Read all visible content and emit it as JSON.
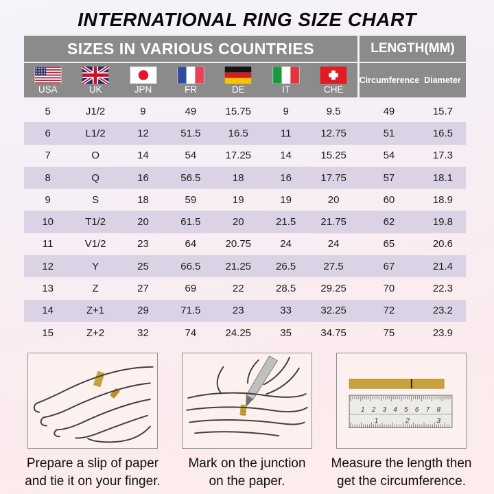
{
  "title": "INTERNATIONAL RING SIZE CHART",
  "table": {
    "header_left": "SIZES IN VARIOUS COUNTRIES",
    "header_right": "LENGTH(MM)",
    "countries": [
      {
        "code": "USA",
        "icon": "usa-flag-icon"
      },
      {
        "code": "UK",
        "icon": "uk-flag-icon"
      },
      {
        "code": "JPN",
        "icon": "jpn-flag-icon"
      },
      {
        "code": "FR",
        "icon": "fr-flag-icon"
      },
      {
        "code": "DE",
        "icon": "de-flag-icon"
      },
      {
        "code": "IT",
        "icon": "it-flag-icon"
      },
      {
        "code": "CHE",
        "icon": "che-flag-icon"
      }
    ],
    "length_columns": [
      "Circumference",
      "Diameter"
    ]
  },
  "chart_data": {
    "type": "table",
    "title": "INTERNATIONAL RING SIZE CHART",
    "columns": [
      "USA",
      "UK",
      "JPN",
      "FR",
      "DE",
      "IT",
      "CHE",
      "Circumference (mm)",
      "Diameter (mm)"
    ],
    "rows": [
      [
        "5",
        "J1/2",
        "9",
        "49",
        "15.75",
        "9",
        "9.5",
        "49",
        "15.7"
      ],
      [
        "6",
        "L1/2",
        "12",
        "51.5",
        "16.5",
        "11",
        "12.75",
        "51",
        "16.5"
      ],
      [
        "7",
        "O",
        "14",
        "54",
        "17.25",
        "14",
        "15.25",
        "54",
        "17.3"
      ],
      [
        "8",
        "Q",
        "16",
        "56.5",
        "18",
        "16",
        "17.75",
        "57",
        "18.1"
      ],
      [
        "9",
        "S",
        "18",
        "59",
        "19",
        "19",
        "20",
        "60",
        "18.9"
      ],
      [
        "10",
        "T1/2",
        "20",
        "61.5",
        "20",
        "21.5",
        "21.75",
        "62",
        "19.8"
      ],
      [
        "11",
        "V1/2",
        "23",
        "64",
        "20.75",
        "24",
        "24",
        "65",
        "20.6"
      ],
      [
        "12",
        "Y",
        "25",
        "66.5",
        "21.25",
        "26.5",
        "27.5",
        "67",
        "21.4"
      ],
      [
        "13",
        "Z",
        "27",
        "69",
        "22",
        "28.5",
        "29.25",
        "70",
        "22.3"
      ],
      [
        "14",
        "Z+1",
        "29",
        "71.5",
        "23",
        "33",
        "32.25",
        "72",
        "23.2"
      ],
      [
        "15",
        "Z+2",
        "32",
        "74",
        "24.25",
        "35",
        "34.75",
        "75",
        "23.9"
      ]
    ]
  },
  "steps": [
    {
      "illustration": "hand-with-paper-strip-illustration",
      "caption": [
        "Prepare a slip of paper",
        "and tie it on your finger."
      ]
    },
    {
      "illustration": "mark-junction-pen-illustration",
      "caption": [
        "Mark on the junction",
        "on the paper."
      ]
    },
    {
      "illustration": "ruler-measure-illustration",
      "caption": [
        "Measure the length then",
        "get the circumference."
      ]
    }
  ],
  "ruler": {
    "top_numbers": [
      "1",
      "2",
      "3",
      "4",
      "5",
      "6",
      "7",
      "8"
    ],
    "bottom_numbers": [
      "1",
      "2",
      "3"
    ]
  },
  "colors": {
    "header_gray": "#8b8b8b",
    "row_alt_lavender": "#dbd3e5",
    "paper_strip_gold": "#c9a23c",
    "bg_top": "#f6f3fb",
    "bg_bottom": "#fdeceb"
  }
}
